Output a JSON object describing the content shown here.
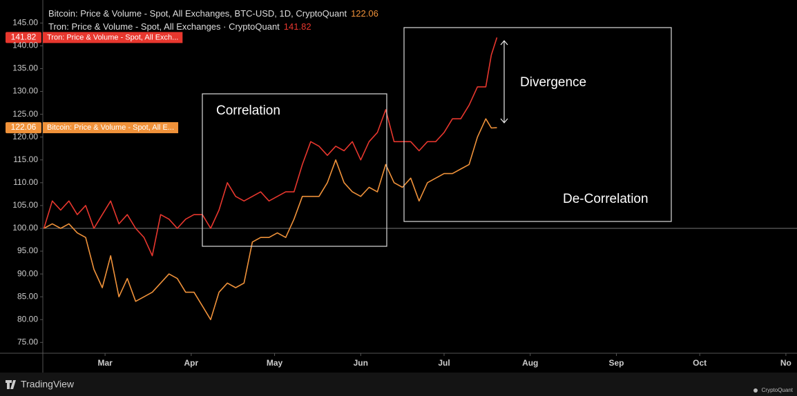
{
  "chart_data": {
    "type": "line",
    "xlim": [
      37.6,
      309
    ],
    "ylim": [
      72.63,
      148.53
    ],
    "xticks": [
      {
        "value": 60,
        "label": "Mar"
      },
      {
        "value": 91,
        "label": "Apr"
      },
      {
        "value": 121,
        "label": "May"
      },
      {
        "value": 152,
        "label": "Jun"
      },
      {
        "value": 182,
        "label": "Jul"
      },
      {
        "value": 213,
        "label": "Aug"
      },
      {
        "value": 244,
        "label": "Sep"
      },
      {
        "value": 274,
        "label": "Oct"
      },
      {
        "value": 305,
        "label": "No"
      }
    ],
    "yticks": [
      {
        "value": 75,
        "label": "75.00"
      },
      {
        "value": 80,
        "label": "80.00"
      },
      {
        "value": 85,
        "label": "85.00"
      },
      {
        "value": 90,
        "label": "90.00"
      },
      {
        "value": 95,
        "label": "95.00"
      },
      {
        "value": 100,
        "label": "100.00"
      },
      {
        "value": 105,
        "label": "105.00"
      },
      {
        "value": 110,
        "label": "110.00"
      },
      {
        "value": 115,
        "label": "115.00"
      },
      {
        "value": 120,
        "label": "120.00"
      },
      {
        "value": 125,
        "label": "125.00"
      },
      {
        "value": 130,
        "label": "130.00"
      },
      {
        "value": 135,
        "label": "135.00"
      },
      {
        "value": 140,
        "label": "140.00"
      },
      {
        "value": 145,
        "label": "145.00"
      }
    ],
    "baseline": 100,
    "x": [
      38,
      41,
      44,
      47,
      50,
      53,
      56,
      59,
      62,
      65,
      68,
      71,
      74,
      77,
      80,
      83,
      86,
      89,
      92,
      95,
      98,
      101,
      104,
      107,
      110,
      113,
      116,
      119,
      122,
      125,
      128,
      131,
      134,
      137,
      140,
      143,
      146,
      149,
      152,
      155,
      158,
      161,
      164,
      167,
      170,
      173,
      176,
      179,
      182,
      185,
      188,
      191,
      194,
      197,
      199,
      201
    ],
    "series": [
      {
        "name": "Bitcoin: Price & Volume - Spot, All Exchanges, BTC-USD, 1D, CryptoQuant",
        "tag": "Bitcoin: Price & Volume - Spot, All E...",
        "color": "#f0923a",
        "values": [
          100,
          101,
          100,
          101,
          99,
          98,
          91,
          87,
          94,
          85,
          89,
          84,
          85,
          86,
          88,
          90,
          89,
          86,
          86,
          83,
          80,
          86,
          88,
          87,
          88,
          97,
          98,
          98,
          99,
          98,
          102,
          107,
          107,
          107,
          110,
          115,
          110,
          108,
          107,
          109,
          108,
          114,
          110,
          109,
          111,
          106,
          110,
          111,
          112,
          112,
          113,
          114,
          120,
          124,
          122,
          122.06
        ]
      },
      {
        "name": "Tron: Price & Volume - Spot, All Exchanges · CryptoQuant",
        "tag": "Tron: Price & Volume - Spot, All Exch...",
        "color": "#e8372e",
        "values": [
          100,
          106,
          104,
          106,
          103,
          105,
          100,
          103,
          106,
          101,
          103,
          100,
          98,
          94,
          103,
          102,
          100,
          102,
          103,
          103,
          100,
          104,
          110,
          107,
          106,
          107,
          108,
          106,
          107,
          108,
          108,
          114,
          119,
          118,
          116,
          118,
          117,
          119,
          115,
          119,
          121,
          126,
          119,
          119,
          119,
          117,
          119,
          119,
          121,
          124,
          124,
          127,
          131,
          131,
          138,
          141.82
        ]
      }
    ],
    "annotations": [
      "Correlation",
      "Divergence",
      "De-Correlation"
    ]
  },
  "footer": {
    "brand": "TradingView",
    "watermark": "CryptoQuant"
  }
}
